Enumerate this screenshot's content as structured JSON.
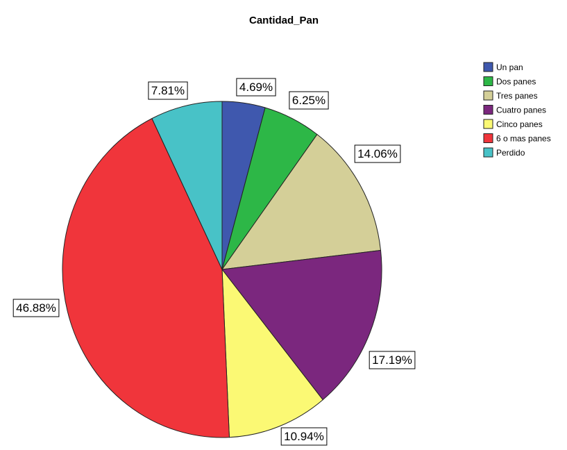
{
  "chart_data": {
    "type": "pie",
    "title": "Cantidad_Pan",
    "legend_position": "top-right",
    "categories": [
      "Un pan",
      "Dos panes",
      "Tres panes",
      "Cuatro panes",
      "Cinco panes",
      "6 o mas panes",
      "Perdido"
    ],
    "values": [
      4.69,
      6.25,
      14.06,
      17.19,
      10.94,
      46.88,
      7.81
    ],
    "labels": [
      "4.69%",
      "6.25%",
      "14.06%",
      "17.19%",
      "10.94%",
      "46.88%",
      "7.81%"
    ],
    "colors": [
      "#3f58ae",
      "#2db747",
      "#d4cf98",
      "#7b277e",
      "#fbf974",
      "#f0353b",
      "#48c2c7"
    ]
  }
}
